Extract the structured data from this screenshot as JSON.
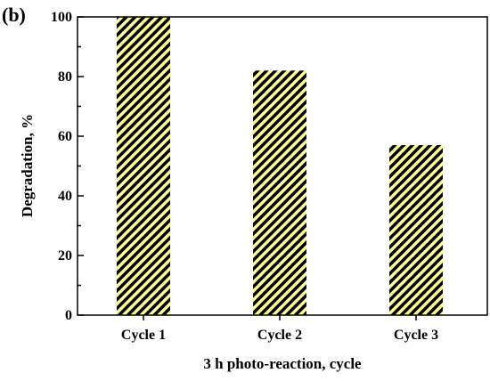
{
  "panel_label": "(b)",
  "chart_data": {
    "type": "bar",
    "categories": [
      "Cycle 1",
      "Cycle 2",
      "Cycle 3"
    ],
    "values": [
      100,
      82,
      57
    ],
    "xlabel": "3 h photo-reaction, cycle",
    "ylabel": "Degradation, %",
    "ylim": [
      0,
      100
    ],
    "yticks": [
      0,
      20,
      40,
      60,
      80,
      100
    ],
    "grid": false,
    "legend": "none",
    "bar_fill_colors": [
      "#ffff99",
      "#000000"
    ],
    "bar_pattern": "diagonal-hatch"
  }
}
